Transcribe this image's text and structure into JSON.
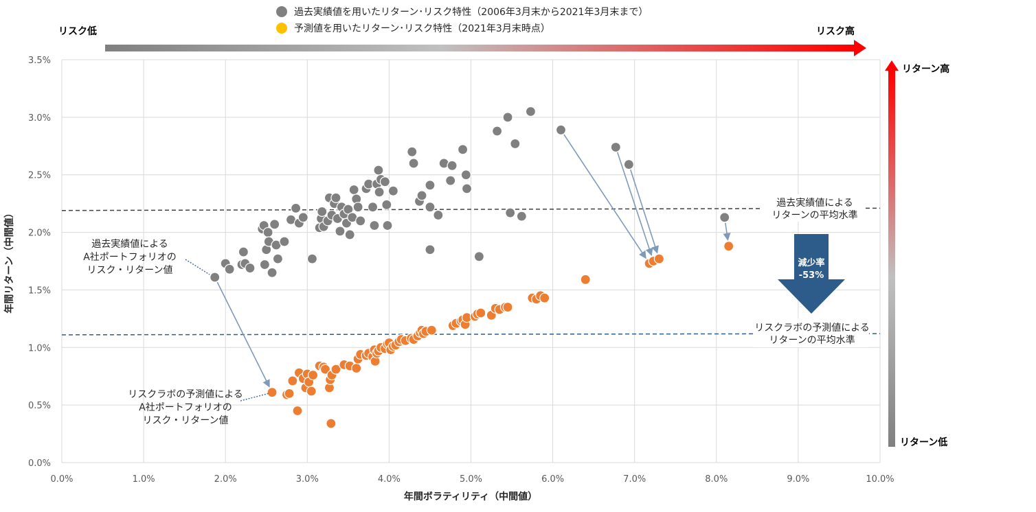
{
  "chart_data": {
    "type": "scatter",
    "title": "",
    "xlabel": "年間ボラティリティ（中間値）",
    "ylabel": "年間リターン（中間値）",
    "xlim": [
      0,
      10
    ],
    "ylim": [
      0,
      3.5
    ],
    "x_ticks": [
      "0.0%",
      "1.0%",
      "2.0%",
      "3.0%",
      "4.0%",
      "5.0%",
      "6.0%",
      "7.0%",
      "8.0%",
      "9.0%",
      "10.0%"
    ],
    "y_ticks": [
      "0.0%",
      "0.5%",
      "1.0%",
      "1.5%",
      "2.0%",
      "2.5%",
      "3.0%",
      "3.5%"
    ],
    "grid": true,
    "legend_position": "top",
    "series": [
      {
        "name": "過去実績値を用いたリターン･リスク特性（2006年3月末から2021年3月末まで）",
        "color": "#808080",
        "legend_color": "#808080",
        "points": [
          [
            1.87,
            1.61
          ],
          [
            2.0,
            1.73
          ],
          [
            2.05,
            1.68
          ],
          [
            2.2,
            1.72
          ],
          [
            2.22,
            1.83
          ],
          [
            2.24,
            1.73
          ],
          [
            2.3,
            1.69
          ],
          [
            2.45,
            2.03
          ],
          [
            2.47,
            2.06
          ],
          [
            2.48,
            1.72
          ],
          [
            2.5,
            1.85
          ],
          [
            2.52,
            2.0
          ],
          [
            2.53,
            1.92
          ],
          [
            2.57,
            1.65
          ],
          [
            2.6,
            2.07
          ],
          [
            2.62,
            1.89
          ],
          [
            2.64,
            1.77
          ],
          [
            2.72,
            1.92
          ],
          [
            2.8,
            2.11
          ],
          [
            2.86,
            2.21
          ],
          [
            2.9,
            2.08
          ],
          [
            2.95,
            2.13
          ],
          [
            3.06,
            1.77
          ],
          [
            3.15,
            2.04
          ],
          [
            3.17,
            2.12
          ],
          [
            3.18,
            2.18
          ],
          [
            3.2,
            2.05
          ],
          [
            3.25,
            2.1
          ],
          [
            3.27,
            2.3
          ],
          [
            3.3,
            2.15
          ],
          [
            3.33,
            2.25
          ],
          [
            3.35,
            2.3
          ],
          [
            3.37,
            2.12
          ],
          [
            3.4,
            2.01
          ],
          [
            3.42,
            2.22
          ],
          [
            3.45,
            2.16
          ],
          [
            3.48,
            2.08
          ],
          [
            3.5,
            2.2
          ],
          [
            3.52,
            1.98
          ],
          [
            3.55,
            2.13
          ],
          [
            3.57,
            2.37
          ],
          [
            3.6,
            2.29
          ],
          [
            3.62,
            2.22
          ],
          [
            3.65,
            2.1
          ],
          [
            3.72,
            2.38
          ],
          [
            3.75,
            2.42
          ],
          [
            3.8,
            2.22
          ],
          [
            3.82,
            2.06
          ],
          [
            3.85,
            2.42
          ],
          [
            3.87,
            2.54
          ],
          [
            3.88,
            2.35
          ],
          [
            3.9,
            2.46
          ],
          [
            3.95,
            2.44
          ],
          [
            3.97,
            2.24
          ],
          [
            3.98,
            2.06
          ],
          [
            4.05,
            2.36
          ],
          [
            4.28,
            2.7
          ],
          [
            4.3,
            2.6
          ],
          [
            4.37,
            2.27
          ],
          [
            4.4,
            2.32
          ],
          [
            4.5,
            1.85
          ],
          [
            4.5,
            2.22
          ],
          [
            4.5,
            2.41
          ],
          [
            4.6,
            2.15
          ],
          [
            4.67,
            2.6
          ],
          [
            4.75,
            2.45
          ],
          [
            4.77,
            2.58
          ],
          [
            4.9,
            2.72
          ],
          [
            4.94,
            2.5
          ],
          [
            4.95,
            2.38
          ],
          [
            5.1,
            1.79
          ],
          [
            5.32,
            2.88
          ],
          [
            5.45,
            3.0
          ],
          [
            5.48,
            2.17
          ],
          [
            5.54,
            2.77
          ],
          [
            5.62,
            2.14
          ],
          [
            5.73,
            3.05
          ],
          [
            6.1,
            2.89
          ],
          [
            6.77,
            2.74
          ],
          [
            6.93,
            2.59
          ],
          [
            8.1,
            2.13
          ]
        ]
      },
      {
        "name": "予測値を用いたリターン･リスク特性（2021年3月末時点）",
        "color": "#ED7D31",
        "legend_color": "#FFC000",
        "points": [
          [
            2.57,
            0.61
          ],
          [
            2.75,
            0.59
          ],
          [
            2.78,
            0.6
          ],
          [
            2.82,
            0.71
          ],
          [
            2.88,
            0.45
          ],
          [
            2.9,
            0.78
          ],
          [
            2.95,
            0.73
          ],
          [
            2.98,
            0.65
          ],
          [
            3.0,
            0.77
          ],
          [
            3.02,
            0.7
          ],
          [
            3.05,
            0.62
          ],
          [
            3.07,
            0.76
          ],
          [
            3.15,
            0.84
          ],
          [
            3.2,
            0.83
          ],
          [
            3.22,
            0.81
          ],
          [
            3.27,
            0.65
          ],
          [
            3.28,
            0.72
          ],
          [
            3.29,
            0.34
          ],
          [
            3.3,
            0.76
          ],
          [
            3.35,
            0.81
          ],
          [
            3.45,
            0.85
          ],
          [
            3.52,
            0.84
          ],
          [
            3.6,
            0.82
          ],
          [
            3.62,
            0.9
          ],
          [
            3.65,
            0.94
          ],
          [
            3.72,
            0.93
          ],
          [
            3.75,
            0.95
          ],
          [
            3.8,
            0.92
          ],
          [
            3.82,
            0.98
          ],
          [
            3.83,
            0.88
          ],
          [
            3.85,
            0.95
          ],
          [
            3.87,
            0.97
          ],
          [
            3.9,
            1.0
          ],
          [
            3.95,
            0.99
          ],
          [
            3.98,
            1.03
          ],
          [
            4.0,
            1.04
          ],
          [
            4.02,
            0.98
          ],
          [
            4.05,
            1.01
          ],
          [
            4.08,
            1.02
          ],
          [
            4.12,
            1.05
          ],
          [
            4.15,
            1.07
          ],
          [
            4.2,
            1.06
          ],
          [
            4.27,
            1.08
          ],
          [
            4.3,
            1.07
          ],
          [
            4.35,
            1.1
          ],
          [
            4.38,
            1.13
          ],
          [
            4.4,
            1.15
          ],
          [
            4.42,
            1.12
          ],
          [
            4.45,
            1.14
          ],
          [
            4.52,
            1.15
          ],
          [
            4.78,
            1.19
          ],
          [
            4.82,
            1.21
          ],
          [
            4.88,
            1.23
          ],
          [
            4.9,
            1.24
          ],
          [
            4.93,
            1.2
          ],
          [
            4.95,
            1.26
          ],
          [
            5.05,
            1.27
          ],
          [
            5.08,
            1.29
          ],
          [
            5.12,
            1.3
          ],
          [
            5.25,
            1.28
          ],
          [
            5.3,
            1.34
          ],
          [
            5.35,
            1.33
          ],
          [
            5.42,
            1.35
          ],
          [
            5.45,
            1.35
          ],
          [
            5.75,
            1.43
          ],
          [
            5.8,
            1.42
          ],
          [
            5.85,
            1.45
          ],
          [
            5.9,
            1.43
          ],
          [
            6.4,
            1.59
          ],
          [
            7.18,
            1.73
          ],
          [
            7.23,
            1.75
          ],
          [
            7.3,
            1.77
          ],
          [
            8.15,
            1.88
          ]
        ]
      }
    ],
    "connectors": [
      [
        [
          1.87,
          1.61
        ],
        [
          2.57,
          0.61
        ]
      ],
      [
        [
          6.1,
          2.89
        ],
        [
          7.18,
          1.73
        ]
      ],
      [
        [
          6.77,
          2.74
        ],
        [
          7.23,
          1.75
        ]
      ],
      [
        [
          6.93,
          2.59
        ],
        [
          7.3,
          1.77
        ]
      ],
      [
        [
          8.1,
          2.13
        ],
        [
          8.15,
          1.88
        ]
      ]
    ],
    "avg_lines": {
      "historical": {
        "y_start": 2.19,
        "y_end": 2.21,
        "color": "#404040"
      },
      "forecast": {
        "y_start": 1.11,
        "y_end": 1.12,
        "color": "#2E5C8A"
      }
    },
    "annotations": {
      "hist_avg_label": [
        "過去実績値による",
        "リターンの平均水準"
      ],
      "forecast_avg_label": [
        "リスクラボの予測値による",
        "リターンの平均水準"
      ],
      "hist_point_label": [
        "過去実績値による",
        "A社ポートフォリオの",
        "リスク・リターン値"
      ],
      "forecast_point_label": [
        "リスクラボの予測値による",
        "A社ポートフォリオの",
        "リスク・リターン値"
      ],
      "decrease_label": "減少率",
      "decrease_value": "-53%",
      "risk_low": "リスク低",
      "risk_high": "リスク高",
      "return_high": "リターン高",
      "return_low": "リターン低"
    },
    "colors": {
      "grid": "#D9D9D9",
      "connector": "#7F9AB8",
      "down_arrow": "#2E5C8A",
      "risk_gradient": [
        "#808080",
        "#FF0000"
      ]
    }
  }
}
